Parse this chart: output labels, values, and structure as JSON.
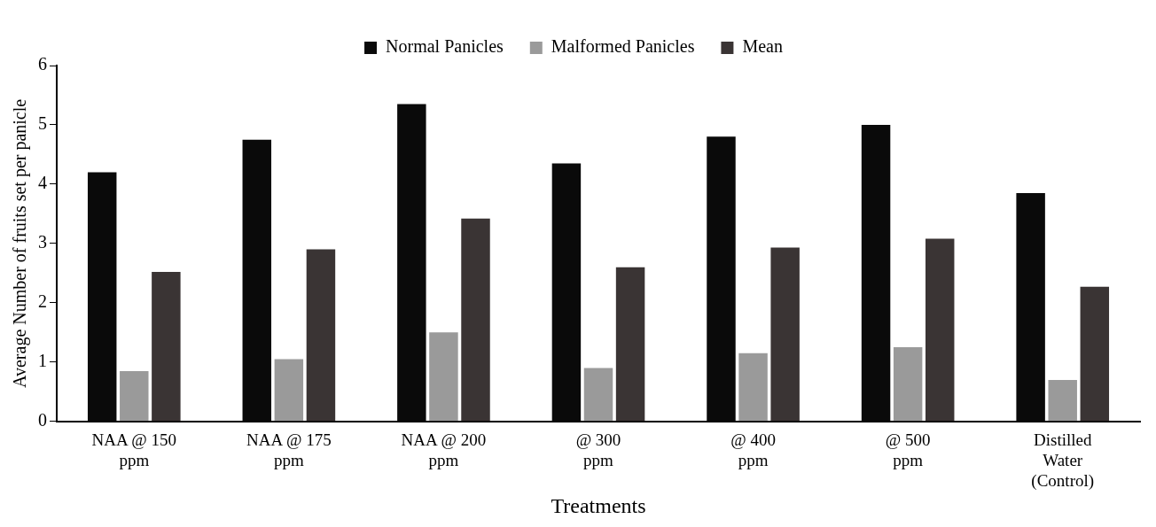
{
  "chart_data": {
    "type": "bar",
    "xlabel": "Treatments",
    "ylabel": "Average Number of fruits set per panicle",
    "categories": [
      "NAA @ 150\nppm",
      "NAA @ 175\nppm",
      "NAA @ 200\nppm",
      "@ 300\nppm",
      "@ 400\nppm",
      "@ 500\nppm",
      "Distilled\nWater\n(Control)"
    ],
    "series": [
      {
        "name": "Normal Panicles",
        "color": "#0a0a0a",
        "values": [
          4.2,
          4.75,
          5.35,
          4.35,
          4.8,
          5.0,
          3.85
        ]
      },
      {
        "name": "Malformed Panicles",
        "color": "#9a9a9a",
        "values": [
          0.85,
          1.05,
          1.5,
          0.9,
          1.15,
          1.25,
          0.7
        ]
      },
      {
        "name": "Mean",
        "color": "#3a3434",
        "values": [
          2.52,
          2.9,
          3.42,
          2.6,
          2.93,
          3.08,
          2.27
        ]
      }
    ],
    "ylim": [
      0,
      6
    ],
    "yticks": [
      0,
      1,
      2,
      3,
      4,
      5,
      6
    ],
    "grid": false,
    "legend": "top"
  }
}
